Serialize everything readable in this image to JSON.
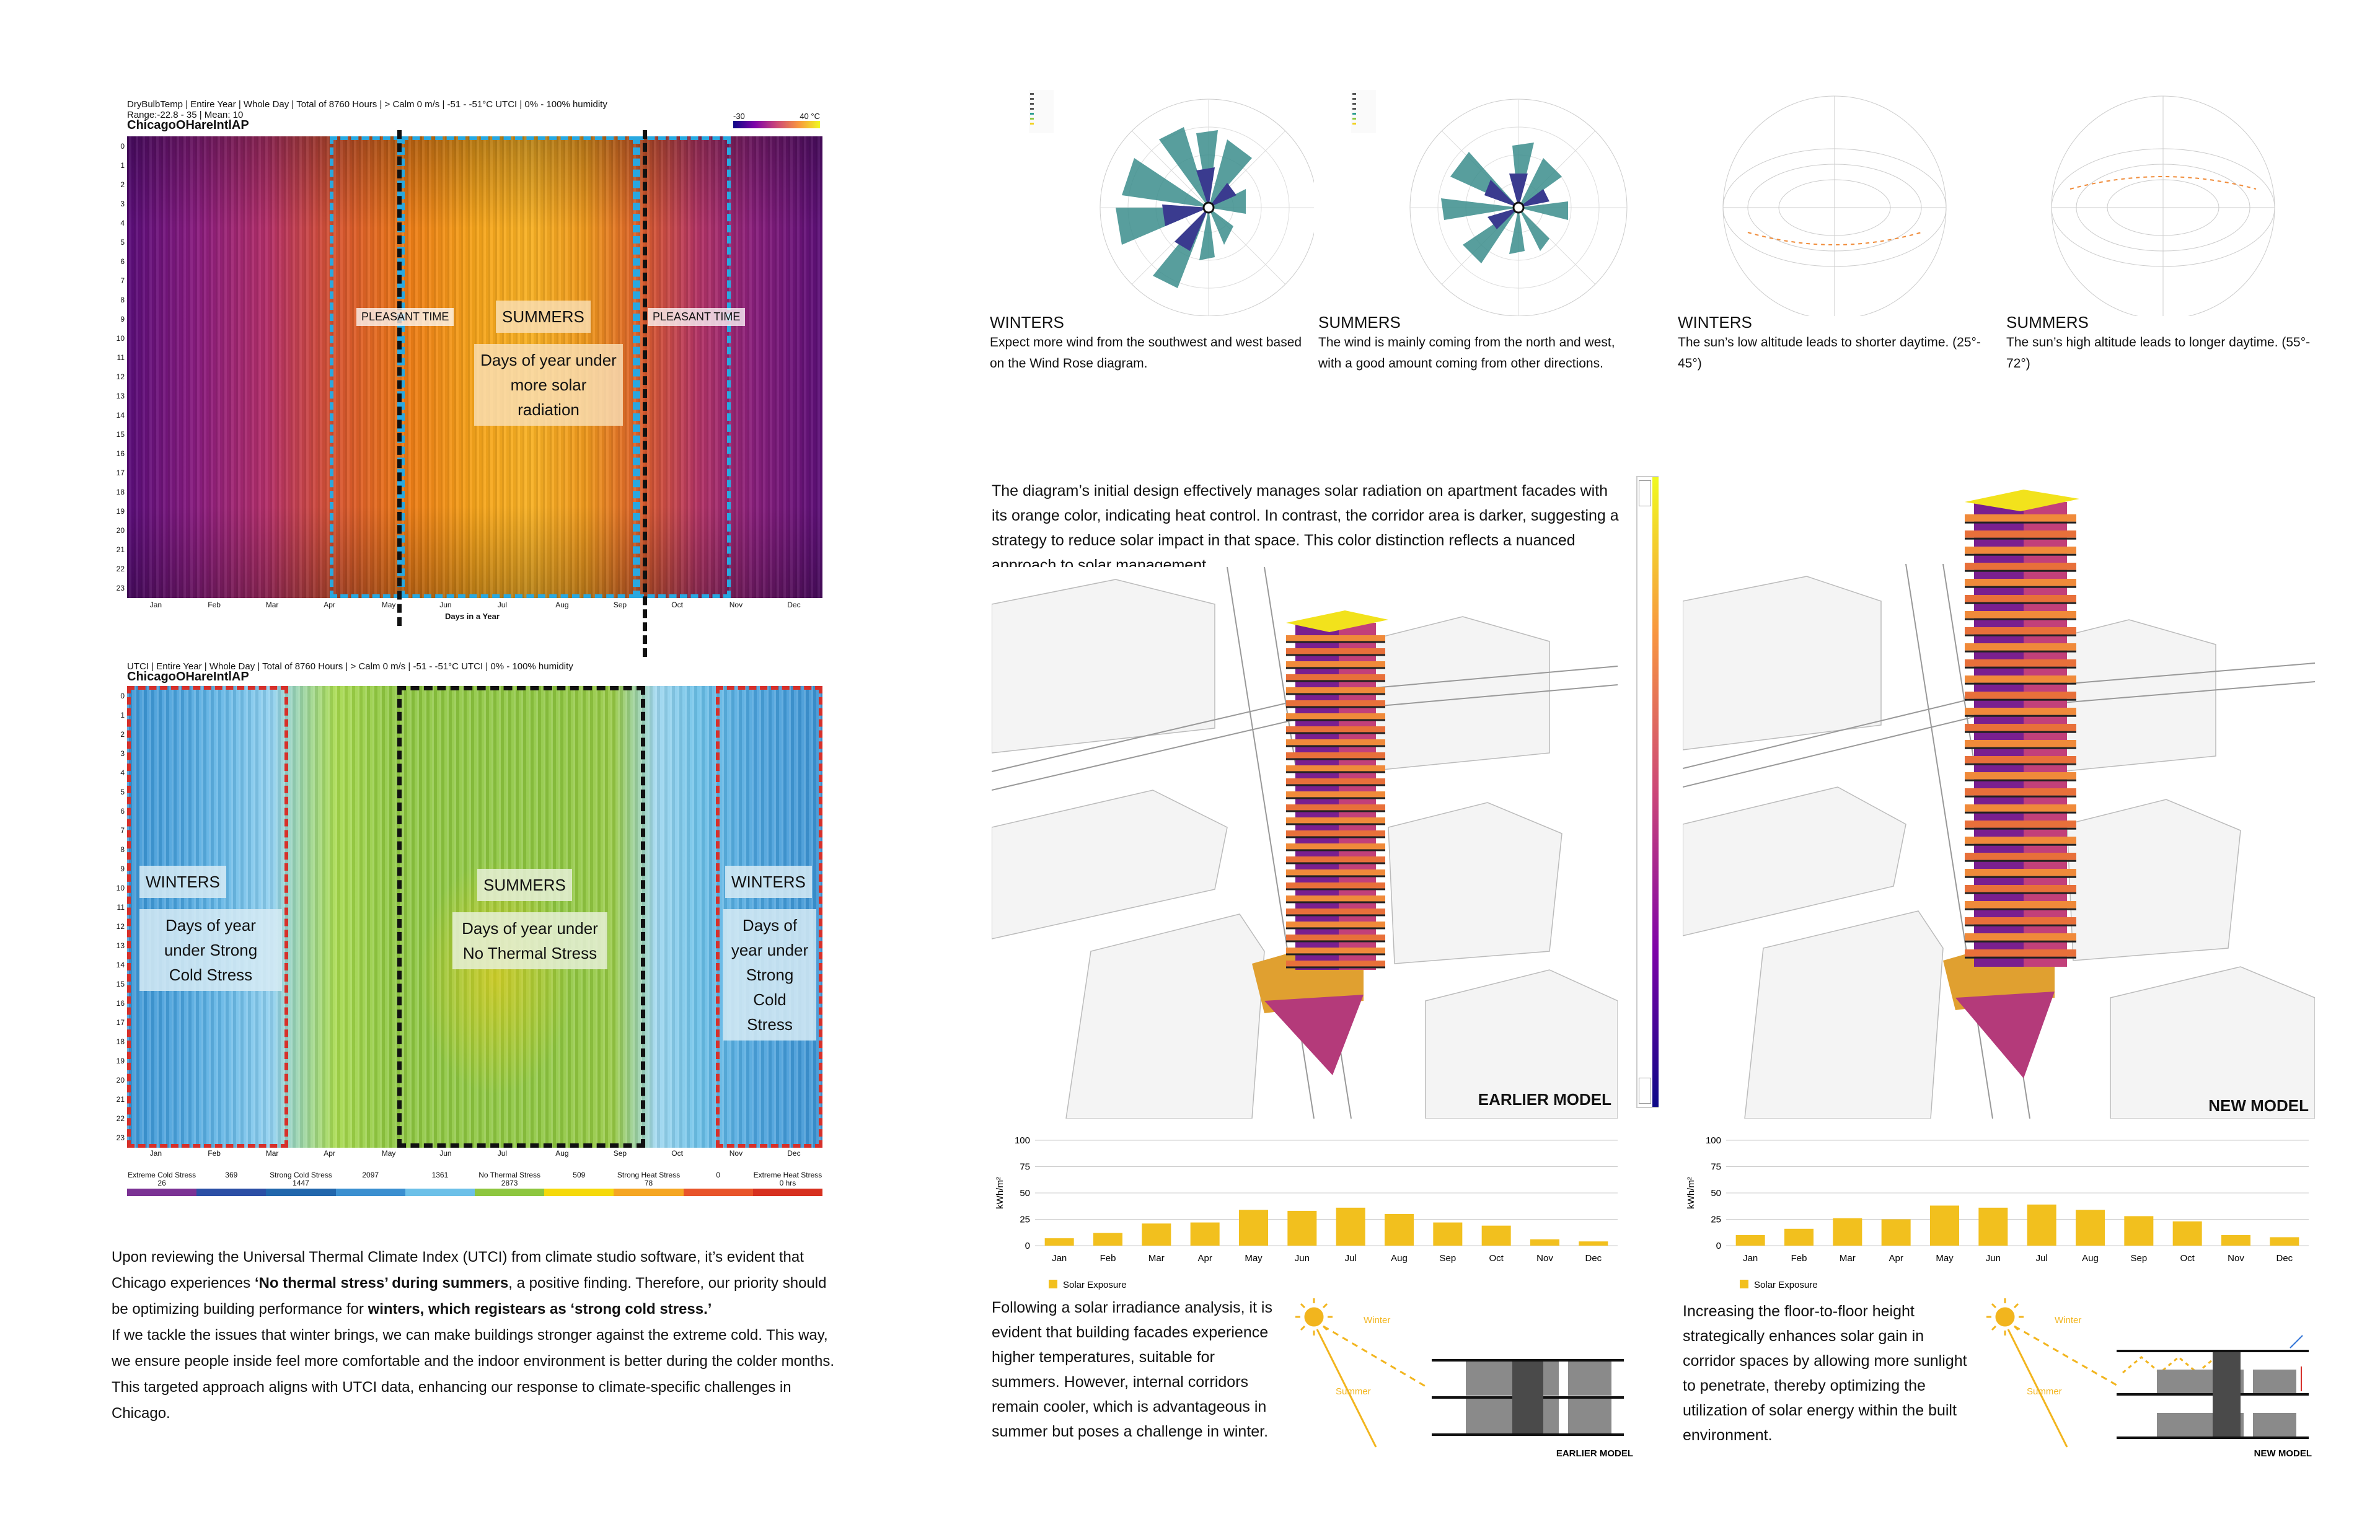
{
  "heatmap1": {
    "title_line1": "DryBulbTemp | Entire Year | Whole Day | Total of 8760 Hours | > Calm 0 m/s | -51 - -51°C UTCI | 0% - 100% humidity",
    "title_line2": "Range:-22.8 - 35 | Mean: 10",
    "station": "ChicagoOHareIntlAP",
    "scale_min": "-30",
    "scale_max": "40 °C",
    "xlabel": "Days in a Year",
    "label_pleasant_left": "PLEASANT TIME",
    "label_pleasant_right": "PLEASANT TIME",
    "label_summers": "SUMMERS",
    "label_summers_desc": "Days of year under more solar radiation"
  },
  "heatmap2": {
    "title_line1": "UTCI | Entire Year | Whole Day | Total of 8760 Hours | > Calm 0 m/s | -51 - -51°C UTCI | 0% - 100% humidity",
    "station": "ChicagoOHareIntlAP",
    "label_winters_left": "WINTERS",
    "label_winters_left_desc": "Days of year under Strong Cold Stress",
    "label_summers": "SUMMERS",
    "label_summers_desc": "Days of year under No Thermal Stress",
    "label_winters_right": "WINTERS",
    "label_winters_right_desc": "Days of year under Strong Cold Stress",
    "legend": [
      {
        "name": "Extreme Cold Stress",
        "value": "26"
      },
      {
        "name": "",
        "value": "369"
      },
      {
        "name": "Strong Cold Stress",
        "value": "1447"
      },
      {
        "name": "",
        "value": "2097"
      },
      {
        "name": "",
        "value": "1361"
      },
      {
        "name": "No Thermal Stress",
        "value": "2873"
      },
      {
        "name": "",
        "value": "509"
      },
      {
        "name": "Strong Heat Stress",
        "value": "78"
      },
      {
        "name": "",
        "value": "0"
      },
      {
        "name": "Extreme Heat Stress",
        "value": "0 hrs"
      }
    ],
    "legend_colors": [
      "#7b3294",
      "#2b4fa5",
      "#2166ac",
      "#3a8fd0",
      "#6cc0e8",
      "#8dc63f",
      "#f5d90a",
      "#f5a623",
      "#e8542a",
      "#d7301f"
    ]
  },
  "axes": {
    "hours": [
      "0",
      "1",
      "2",
      "3",
      "4",
      "5",
      "6",
      "7",
      "8",
      "9",
      "10",
      "11",
      "12",
      "13",
      "14",
      "15",
      "16",
      "17",
      "18",
      "19",
      "20",
      "21",
      "22",
      "23"
    ],
    "months": [
      "Jan",
      "Feb",
      "Mar",
      "Apr",
      "May",
      "Jun",
      "Jul",
      "Aug",
      "Sep",
      "Oct",
      "Nov",
      "Dec"
    ]
  },
  "utci_text": {
    "p1_a": "Upon reviewing the Universal Thermal Climate Index (UTCI) from climate studio software, it’s evident that Chicago experiences ",
    "p1_b": "‘No thermal stress’ during summers",
    "p1_c": ", a positive finding. Therefore, our priority should be optimizing building performance for ",
    "p1_d": "winters, which registears as ‘strong cold stress.’",
    "p2": "If we tackle the issues that winter brings, we can make buildings stronger against the extreme cold. This way, we ensure people inside feel more comfortable and the indoor environment is better during the colder months.",
    "p3": "This targeted approach aligns with UTCI data, enhancing our response to climate-specific challenges in Chicago."
  },
  "roses": [
    {
      "head": "WINTERS",
      "text": "Expect more wind from the southwest and west based on the Wind Rose diagram."
    },
    {
      "head": "SUMMERS",
      "text": "The wind is mainly coming from the north and west, with a good amount coming from other directions."
    },
    {
      "head": "WINTERS",
      "text": "The sun’s low altitude leads to shorter daytime. (25°- 45°)"
    },
    {
      "head": "SUMMERS",
      "text": "The sun’s high altitude leads to longer daytime. (55°- 72°)"
    }
  ],
  "model_intro": "The diagram’s initial design effectively manages solar radiation on apartment facades with its orange color, indicating heat control. In contrast, the corridor area is darker, suggesting a strategy to reduce solar impact in that space. This color distinction reflects a nuanced approach to solar management.",
  "earlier_label": "EARLIER MODEL",
  "new_label": "NEW MODEL",
  "chart_data": [
    {
      "type": "bar",
      "categories": [
        "Jan",
        "Feb",
        "Mar",
        "Apr",
        "May",
        "Jun",
        "Jul",
        "Aug",
        "Sep",
        "Oct",
        "Nov",
        "Dec"
      ],
      "values": [
        7,
        12,
        21,
        22,
        34,
        33,
        36,
        30,
        22,
        19,
        6,
        4
      ],
      "ylim": [
        0,
        100
      ],
      "yticks": [
        "0",
        "25",
        "50",
        "75",
        "100"
      ],
      "ylabel": "kWh/m²",
      "legend": "Solar Exposure",
      "color": "#f2c01e"
    },
    {
      "type": "bar",
      "categories": [
        "Jan",
        "Feb",
        "Mar",
        "Apr",
        "May",
        "Jun",
        "Jul",
        "Aug",
        "Sep",
        "Oct",
        "Nov",
        "Dec"
      ],
      "values": [
        10,
        16,
        26,
        25,
        38,
        36,
        39,
        34,
        28,
        23,
        10,
        8
      ],
      "ylim": [
        0,
        100
      ],
      "yticks": [
        "0",
        "25",
        "50",
        "75",
        "100"
      ],
      "ylabel": "kWh/m²",
      "legend": "Solar Exposure",
      "color": "#f2c01e"
    }
  ],
  "earlier_text": "Following a solar irradiance analysis, it is evident that building facades experience higher temperatures, suitable for summers. However, internal corridors remain cooler, which is advantageous in summer but poses a challenge in winter.",
  "new_text": "Increasing the floor-to-floor height strategically enhances solar gain in corridor spaces by allowing more sunlight to penetrate, thereby optimizing the utilization of solar energy within the built environment.",
  "section_winter": "Winter",
  "section_summer": "Summer",
  "section_earlier": "EARLIER MODEL",
  "section_new": "NEW MODEL"
}
